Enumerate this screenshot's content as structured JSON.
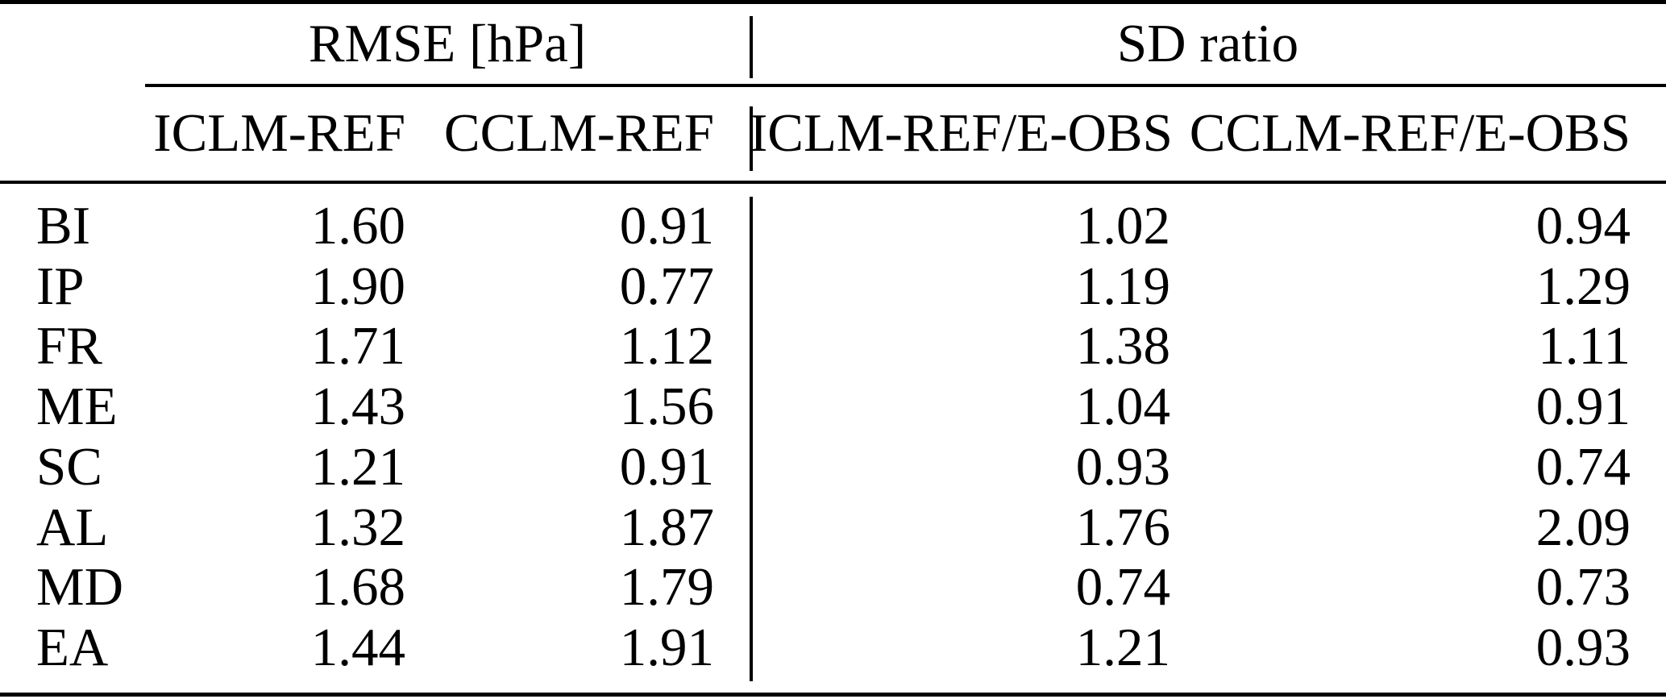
{
  "chart_data": {
    "type": "table",
    "col_groups": [
      "RMSE [hPa]",
      "SD ratio"
    ],
    "columns": [
      "ICLM-REF",
      "CCLM-REF",
      "ICLM-REF/E-OBS",
      "CCLM-REF/E-OBS"
    ],
    "row_labels": [
      "BI",
      "IP",
      "FR",
      "ME",
      "SC",
      "AL",
      "MD",
      "EA"
    ],
    "rows": [
      [
        "1.60",
        "0.91",
        "1.02",
        "0.94"
      ],
      [
        "1.90",
        "0.77",
        "1.19",
        "1.29"
      ],
      [
        "1.71",
        "1.12",
        "1.38",
        "1.11"
      ],
      [
        "1.43",
        "1.56",
        "1.04",
        "0.91"
      ],
      [
        "1.21",
        "0.91",
        "0.93",
        "0.74"
      ],
      [
        "1.32",
        "1.87",
        "1.76",
        "2.09"
      ],
      [
        "1.68",
        "1.79",
        "0.74",
        "0.73"
      ],
      [
        "1.44",
        "1.91",
        "1.21",
        "0.93"
      ]
    ],
    "layout": {
      "grid": "off",
      "divider": "vertical rule between RMSE and SD ratio column groups",
      "alignment": "row labels left, values right"
    },
    "colors": {
      "background": "#ffffff",
      "text": "#000000",
      "rules": "#000000"
    }
  }
}
